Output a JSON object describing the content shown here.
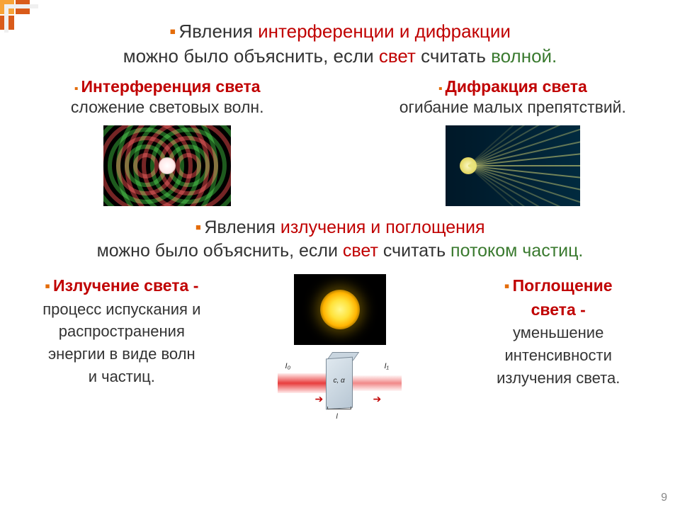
{
  "header": {
    "line1_pre": "Явления ",
    "line1_red": "интерференции и дифракции",
    "line2_pre": "можно было объяснить, если ",
    "line2_red": "свет",
    "line2_mid": " считать ",
    "line2_green": "волной."
  },
  "top_left": {
    "title": "Интерференция света",
    "sub": "сложение световых волн."
  },
  "top_right": {
    "title": "Дифракция света",
    "sub": "огибание малых препятствий."
  },
  "interference_img": {
    "bg": "#000000",
    "center_offsets": [
      -30,
      30
    ],
    "radii": [
      12,
      24,
      36,
      48,
      60,
      72,
      84,
      96
    ],
    "ring_width": 6,
    "colors": [
      "#b33939",
      "#2e8b2e"
    ]
  },
  "diffraction_img": {
    "bg_gradient": [
      "#001828",
      "#012a3f"
    ],
    "source_color": "#e6db6a",
    "fan_lines": 15,
    "fan_color": "#e8e47a",
    "fan_opacity": 0.55,
    "fan_angle_deg": 42
  },
  "mid": {
    "line1_pre": "Явления ",
    "line1_red": "излучения и поглощения",
    "line2_pre": "можно было объяснить, если ",
    "line2_red": "свет",
    "line2_mid": " считать ",
    "line2_green": "потоком частиц."
  },
  "emission": {
    "title": "Излучение света -",
    "l1": "процесс испускания и",
    "l2": "распространения",
    "l3": "энергии в виде волн",
    "l4": "и частиц."
  },
  "absorption": {
    "title": "Поглощение",
    "title2": "света -",
    "l1": "уменьшение",
    "l2": "интенсивности",
    "l3": "излучения света."
  },
  "absorb_diagram": {
    "I0": "I₀",
    "I1": "I₁",
    "slab_label": "c, α",
    "length_label": "l",
    "beam_color": "#e63030",
    "slab_color": "#cdd8e1"
  },
  "colors": {
    "accent_red": "#c00000",
    "accent_green": "#3a7a2f",
    "bullet": "#e46c0a",
    "decor1": "#f7a338",
    "decor2": "#d95b1a"
  },
  "pagenum": "9"
}
